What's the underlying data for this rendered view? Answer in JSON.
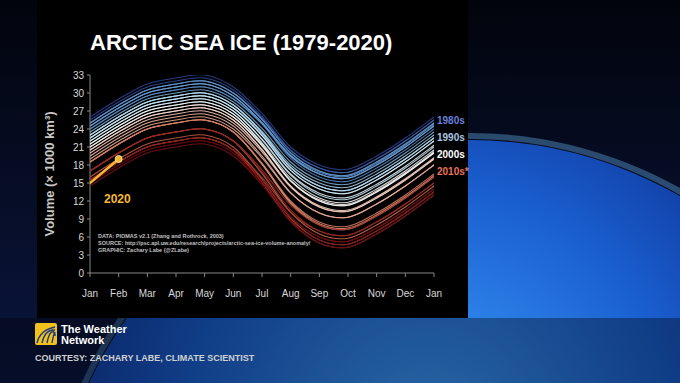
{
  "chart_data": {
    "type": "line",
    "title": "ARCTIC SEA ICE (1979-2020)",
    "ylabel": "Volume (× 1000 km³)",
    "categories": [
      "Jan",
      "Feb",
      "Mar",
      "Apr",
      "May",
      "Jun",
      "Jul",
      "Aug",
      "Sep",
      "Oct",
      "Nov",
      "Dec",
      "Jan"
    ],
    "ylim": [
      0,
      33
    ],
    "yticks": [
      0,
      3,
      6,
      9,
      12,
      15,
      18,
      21,
      24,
      27,
      30,
      33
    ],
    "grid": false,
    "series": [
      {
        "color": "#2b3f8f",
        "values": [
          26,
          29,
          31.5,
          32.5,
          33,
          31,
          26.6,
          21,
          18,
          17.3,
          19.5,
          22.5,
          26
        ]
      },
      {
        "color": "#2f4a98",
        "values": [
          25.5,
          28.5,
          31,
          32,
          32.5,
          30.5,
          26.1,
          20.5,
          17.5,
          16.8,
          19,
          22,
          25.5
        ]
      },
      {
        "color": "#3455a0",
        "values": [
          24.5,
          27.5,
          30,
          31,
          31.5,
          29.5,
          25.1,
          19.5,
          16.5,
          15.8,
          18,
          21,
          24.5
        ]
      },
      {
        "color": "#3a60a8",
        "values": [
          25,
          28,
          30.5,
          31.5,
          32,
          30,
          25.8,
          20.4,
          17.5,
          16.8,
          19,
          22,
          25.5
        ]
      },
      {
        "color": "#416bb0",
        "values": [
          25,
          28,
          30.5,
          31.5,
          32,
          30,
          25.6,
          20,
          17,
          16.3,
          18.5,
          21.5,
          25
        ]
      },
      {
        "color": "#4876b7",
        "values": [
          24,
          27,
          29.5,
          30.5,
          31,
          29,
          24.8,
          19.4,
          16.5,
          15.8,
          18,
          21,
          24.5
        ]
      },
      {
        "color": "#5081bd",
        "values": [
          24.5,
          27.5,
          30,
          31,
          31.5,
          29.5,
          24.9,
          19.1,
          16,
          15.3,
          17.5,
          20.5,
          24
        ]
      },
      {
        "color": "#598cc3",
        "values": [
          24,
          27,
          29.5,
          30.5,
          31,
          29,
          24.9,
          19.6,
          16.8,
          16.1,
          18.3,
          21.3,
          24.8
        ]
      },
      {
        "color": "#6397c9",
        "values": [
          25,
          28,
          30.5,
          31.5,
          32,
          30,
          25.6,
          20,
          17,
          16.3,
          18.5,
          21.5,
          25
        ]
      },
      {
        "color": "#6ea1ce",
        "values": [
          24.5,
          27.5,
          30,
          31,
          31.5,
          29.5,
          25.1,
          19.5,
          16.5,
          15.8,
          18,
          21,
          24.5
        ]
      },
      {
        "color": "#79abd3",
        "values": [
          23.5,
          26.5,
          29,
          30,
          30.5,
          28.5,
          24.1,
          18.5,
          15.5,
          14.8,
          17,
          20,
          23.5
        ]
      },
      {
        "color": "#85b5d8",
        "values": [
          23,
          26,
          28.5,
          29.5,
          30,
          28,
          23.4,
          17.6,
          14.5,
          13.8,
          16,
          19,
          22.5
        ]
      },
      {
        "color": "#91bedd",
        "values": [
          22.5,
          25.5,
          28,
          29,
          29.5,
          27.5,
          23.1,
          17.5,
          14.5,
          13.8,
          16,
          19,
          22.5
        ]
      },
      {
        "color": "#9dc7e1",
        "values": [
          23,
          26,
          28.5,
          29.5,
          30,
          28,
          23.6,
          18,
          15,
          14.3,
          16.5,
          19.5,
          23
        ]
      },
      {
        "color": "#aacfe5",
        "values": [
          22.5,
          25.5,
          28,
          29,
          29.5,
          27.5,
          22.9,
          17.1,
          14,
          13.3,
          15.5,
          18.5,
          22
        ]
      },
      {
        "color": "#b6d7e9",
        "values": [
          23,
          26,
          28.5,
          29.5,
          30,
          28,
          23.4,
          17.6,
          14.5,
          13.8,
          16,
          19,
          22.5
        ]
      },
      {
        "color": "#c2deec",
        "values": [
          22,
          25,
          27.5,
          28.5,
          29,
          27,
          22.2,
          16.3,
          13,
          12.3,
          14.5,
          17.5,
          21
        ]
      },
      {
        "color": "#cde5ef",
        "values": [
          22.5,
          25.5,
          28,
          29,
          29.5,
          27.5,
          22.9,
          17.1,
          14,
          13.3,
          15.5,
          18.5,
          22
        ]
      },
      {
        "color": "#d8ebf2",
        "values": [
          22,
          25,
          27.5,
          28.5,
          29,
          27,
          22.3,
          16.5,
          13.3,
          12.6,
          14.8,
          17.8,
          21.3
        ]
      },
      {
        "color": "#e2f0f4",
        "values": [
          21.5,
          24.5,
          27,
          28,
          28.5,
          26.5,
          21.5,
          15.4,
          12,
          11.3,
          13.5,
          16.5,
          20
        ]
      },
      {
        "color": "#ecf4f6",
        "values": [
          21.5,
          24.5,
          27,
          28,
          28.5,
          26.5,
          21.7,
          15.8,
          12.5,
          11.8,
          14,
          17,
          20.5
        ]
      },
      {
        "color": "#f5f5f5",
        "values": [
          21,
          24,
          26.5,
          27.5,
          28,
          26,
          21.2,
          15.3,
          12,
          11.3,
          13.5,
          16.5,
          20
        ]
      },
      {
        "color": "#f7ece8",
        "values": [
          21,
          24,
          26.5,
          27.5,
          28,
          26,
          21.3,
          15.4,
          12.2,
          11.5,
          13.7,
          16.7,
          20.2
        ]
      },
      {
        "color": "#f6e0d8",
        "values": [
          20.5,
          23.5,
          26,
          27,
          27.5,
          25.5,
          20.5,
          14.4,
          11,
          10.3,
          12.5,
          15.5,
          19
        ]
      },
      {
        "color": "#f4d3c7",
        "values": [
          20.5,
          23.5,
          26,
          27,
          27.5,
          25.5,
          20.6,
          14.5,
          11.2,
          10.5,
          12.7,
          15.7,
          19.2
        ]
      },
      {
        "color": "#f1c5b5",
        "values": [
          20,
          23,
          25.5,
          26.5,
          27,
          25,
          20.2,
          14.3,
          11,
          10.3,
          12.5,
          15.5,
          19
        ]
      },
      {
        "color": "#edb7a4",
        "values": [
          19.5,
          22.5,
          25,
          26,
          26.5,
          24.5,
          19.5,
          13.4,
          10,
          9.3,
          11.5,
          14.5,
          18
        ]
      },
      {
        "color": "#e8a892",
        "values": [
          19,
          22,
          24.5,
          25.5,
          26,
          24,
          19.2,
          13.3,
          10,
          9.3,
          11.5,
          14.5,
          18
        ]
      },
      {
        "color": "#e29981",
        "values": [
          18.5,
          21.5,
          24,
          25,
          25.5,
          23.5,
          18.1,
          11.6,
          8,
          7.3,
          9.5,
          12.5,
          16
        ]
      },
      {
        "color": "#db8a70",
        "values": [
          18.5,
          21.5,
          24,
          25,
          25.5,
          23.5,
          18.2,
          11.8,
          8.2,
          7.5,
          9.7,
          12.7,
          16.2
        ]
      },
      {
        "color": "#d47a60",
        "values": [
          18.5,
          21.5,
          24,
          25,
          25.5,
          23.5,
          18.3,
          12,
          8.5,
          7.8,
          10,
          13,
          16.5
        ]
      },
      {
        "color": "#cc6a51",
        "values": [
          17,
          20,
          22.5,
          23.5,
          24,
          22,
          16.6,
          10.1,
          6.5,
          5.8,
          8,
          11,
          14.5
        ]
      },
      {
        "color": "#c35a44",
        "values": [
          16,
          19,
          21.5,
          22.5,
          23,
          21,
          15.6,
          9.1,
          5.5,
          4.8,
          7,
          10,
          13.5
        ]
      },
      {
        "color": "#b94a38",
        "values": [
          15.5,
          18.5,
          21,
          22,
          22.5,
          20.5,
          15.1,
          8.6,
          5,
          4.3,
          6.5,
          9.5,
          13
        ]
      },
      {
        "color": "#ae3c2e",
        "values": [
          15.5,
          18.5,
          21,
          22,
          22.5,
          20.5,
          15.9,
          10.1,
          7,
          6.3,
          8.5,
          11.5,
          15
        ]
      },
      {
        "color": "#a22f26",
        "values": [
          17,
          20,
          22.5,
          23.5,
          24,
          22,
          17.2,
          11.3,
          8,
          7.3,
          9.5,
          12.5,
          16
        ]
      },
      {
        "color": "#95241f",
        "values": [
          17,
          20,
          22.5,
          23.5,
          24,
          22,
          16.8,
          10.5,
          7,
          6.3,
          8.5,
          11.5,
          15
        ]
      },
      {
        "color": "#871a1a",
        "values": [
          15.5,
          18.5,
          21,
          22,
          22.5,
          20.5,
          15.5,
          9.4,
          6,
          5.3,
          7.5,
          10.5,
          14
        ]
      },
      {
        "color": "#791216",
        "values": [
          14.5,
          17.5,
          20,
          21,
          21.5,
          19.5,
          14.7,
          8.8,
          5.5,
          4.8,
          7,
          10,
          13.5
        ]
      },
      {
        "color": "#6b0c13",
        "values": [
          15,
          18,
          20.5,
          21.5,
          22,
          20,
          15.2,
          9.3,
          6,
          5.3,
          7.5,
          10.5,
          14
        ]
      },
      {
        "color": "#5d0810",
        "values": [
          15,
          18,
          20.5,
          21.5,
          22,
          20,
          14.8,
          8.5,
          5,
          4.3,
          6.5,
          9.5,
          13
        ]
      },
      {
        "name": "2020",
        "color": "#f5b731",
        "marker": "circle",
        "values": [
          15,
          19,
          null,
          null,
          null,
          null,
          null,
          null,
          null,
          null,
          null,
          null,
          null
        ]
      }
    ],
    "annotations": [
      {
        "text": "1980s",
        "color": "#6a7fdc"
      },
      {
        "text": "1990s",
        "color": "#a9c4e0"
      },
      {
        "text": "2000s",
        "color": "#ffffff"
      },
      {
        "text": "2010s*",
        "color": "#e8735a"
      }
    ],
    "notes": [
      "DATA: PIOMAS v2.1 (Zhang and Rothrock, 2003)",
      "SOURCE: http://psc.apl.uw.edu/research/projects/arctic-sea-ice-volume-anomaly/",
      "GRAPHIC: Zachary Labe (@ZLabe)"
    ]
  },
  "footer": {
    "logo": [
      "The Weather",
      "Network"
    ],
    "credit": "COURTESY: ZACHARY LABE, CLIMATE SCIENTIST"
  }
}
